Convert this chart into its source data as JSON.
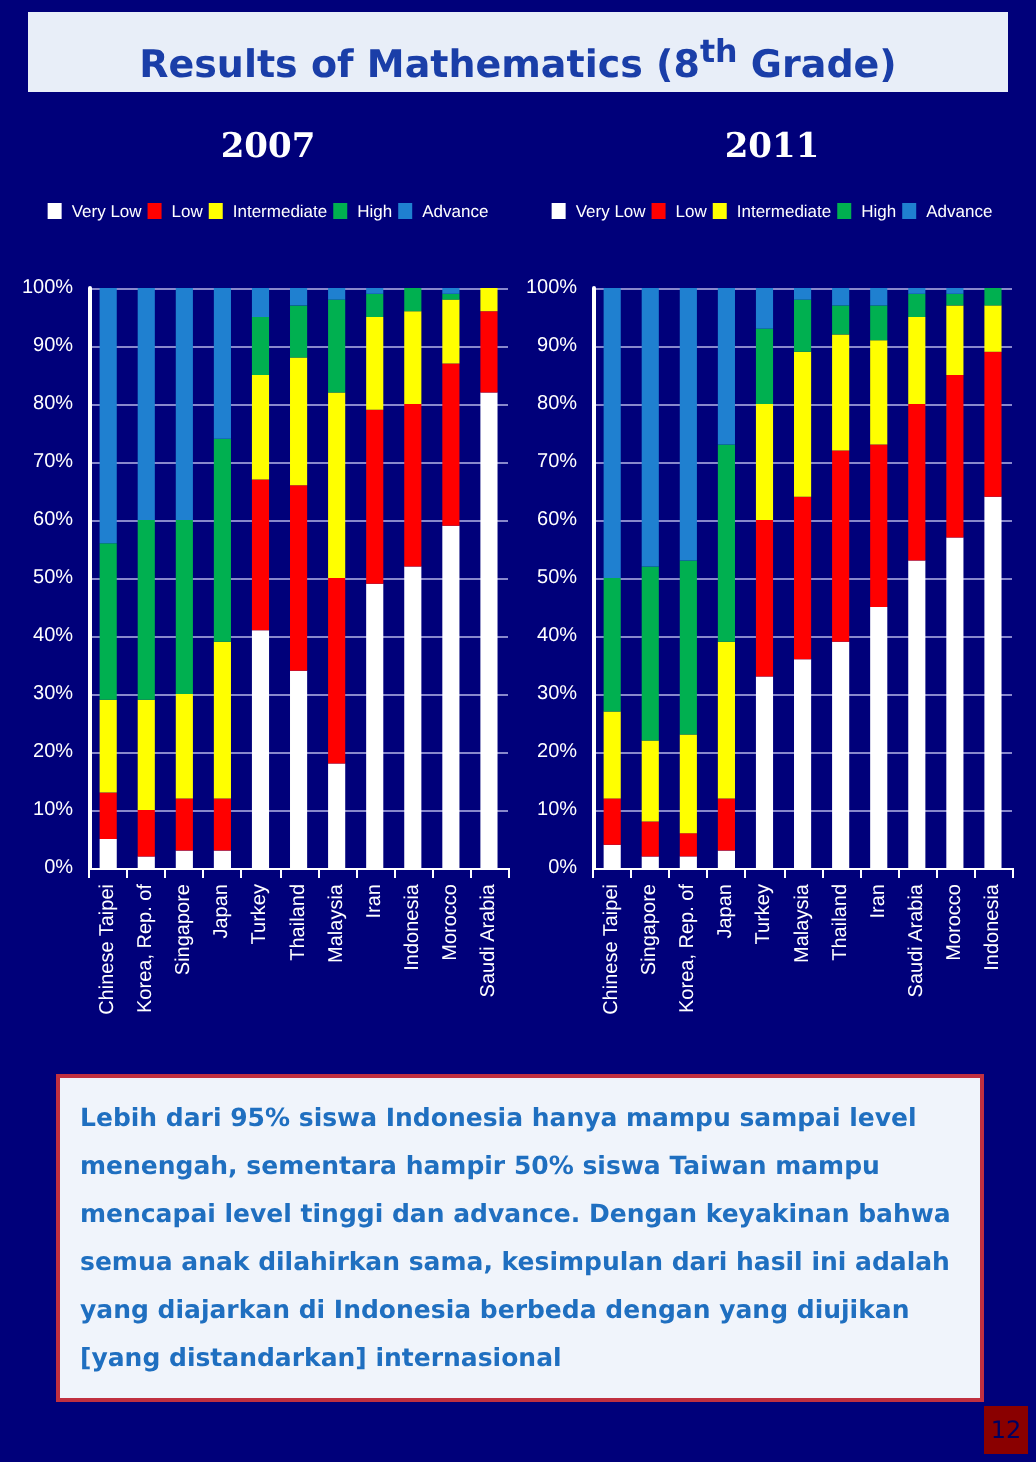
{
  "chart_data": [
    {
      "type": "bar",
      "stacked": true,
      "title": "2007",
      "annotations": [
        "Results of Mathematics (8$^{th}$ Grade)"
      ],
      "categories": [
        "Chinese Taipei",
        "Korea, Rep. of",
        "Singapore",
        "Japan",
        "Turkey",
        "Thailand",
        "Malaysia",
        "Iran",
        "Indonesia",
        "Morocco",
        "Saudi Arabia"
      ],
      "series": [
        {
          "name": "Very Low",
          "color": "#ffffff",
          "values": [
            5,
            2,
            3,
            3,
            41,
            34,
            18,
            49,
            52,
            59,
            82
          ]
        },
        {
          "name": "Low",
          "color": "#ff0000",
          "values": [
            8,
            8,
            9,
            9,
            26,
            32,
            32,
            30,
            28,
            28,
            14
          ]
        },
        {
          "name": "Intermediate",
          "color": "#ffff00",
          "values": [
            16,
            19,
            18,
            27,
            18,
            22,
            32,
            16,
            16,
            11,
            4
          ]
        },
        {
          "name": "High",
          "color": "#00b050",
          "values": [
            27,
            31,
            30,
            35,
            10,
            9,
            16,
            4,
            4,
            1,
            0
          ]
        },
        {
          "name": "Advance",
          "color": "#1f80d0",
          "values": [
            44,
            40,
            40,
            26,
            5,
            3,
            2,
            1,
            0,
            1,
            0
          ]
        }
      ],
      "ylim": [
        0,
        100
      ],
      "yticks": [
        {
          "value": 0,
          "label": "0%"
        },
        {
          "value": 10,
          "label": "10%"
        },
        {
          "value": 20,
          "label": "20%"
        },
        {
          "value": 30,
          "label": "30%"
        },
        {
          "value": 40,
          "label": "40%"
        },
        {
          "value": 50,
          "label": "50%"
        },
        {
          "value": 60,
          "label": "60%"
        },
        {
          "value": 70,
          "label": "70%"
        },
        {
          "value": 80,
          "label": "80%"
        },
        {
          "value": 90,
          "label": "90%"
        },
        {
          "value": 100,
          "label": "100%"
        }
      ],
      "grid": "y",
      "legend": "top"
    },
    {
      "type": "bar",
      "stacked": true,
      "title": "2011",
      "annotations": [
        "Lebih dari 95% siswa Indonesia hanya mampu sampai level menengah, sementara hampir 50%  siswa Taiwan mampu mencapai level tinggi dan advance. Dengan keyakinan bahwa semua anak dilahirkan sama, kesimpulan dari hasil ini adalah yang diajarkan di Indonesia berbeda dengan yang diujikan [yang distandarkan] internasional",
        "12"
      ],
      "categories": [
        "Chinese Taipei",
        "Singapore",
        "Korea, Rep. of",
        "Japan",
        "Turkey",
        "Malaysia",
        "Thailand",
        "Iran",
        "Saudi Arabia",
        "Morocco",
        "Indonesia"
      ],
      "series": [
        {
          "name": "Very Low",
          "color": "#ffffff",
          "values": [
            4,
            2,
            2,
            3,
            33,
            36,
            39,
            45,
            53,
            57,
            64
          ]
        },
        {
          "name": "Low",
          "color": "#ff0000",
          "values": [
            8,
            6,
            4,
            9,
            27,
            28,
            33,
            28,
            27,
            28,
            25
          ]
        },
        {
          "name": "Intermediate",
          "color": "#ffff00",
          "values": [
            15,
            14,
            17,
            27,
            20,
            25,
            20,
            18,
            15,
            12,
            8
          ]
        },
        {
          "name": "High",
          "color": "#00b050",
          "values": [
            23,
            30,
            30,
            34,
            13,
            9,
            5,
            6,
            4,
            2,
            3
          ]
        },
        {
          "name": "Advance",
          "color": "#1f80d0",
          "values": [
            50,
            48,
            47,
            27,
            7,
            2,
            3,
            3,
            1,
            1,
            0
          ]
        }
      ],
      "ylim": [
        0,
        100
      ],
      "yticks": [
        {
          "value": 0,
          "label": "0%"
        },
        {
          "value": 10,
          "label": "10%"
        },
        {
          "value": 20,
          "label": "20%"
        },
        {
          "value": 30,
          "label": "30%"
        },
        {
          "value": 40,
          "label": "40%"
        },
        {
          "value": 50,
          "label": "50%"
        },
        {
          "value": 60,
          "label": "60%"
        },
        {
          "value": 70,
          "label": "70%"
        },
        {
          "value": 80,
          "label": "80%"
        },
        {
          "value": 90,
          "label": "90%"
        },
        {
          "value": 100,
          "label": "100%"
        }
      ],
      "grid": "y",
      "legend": "top"
    }
  ]
}
